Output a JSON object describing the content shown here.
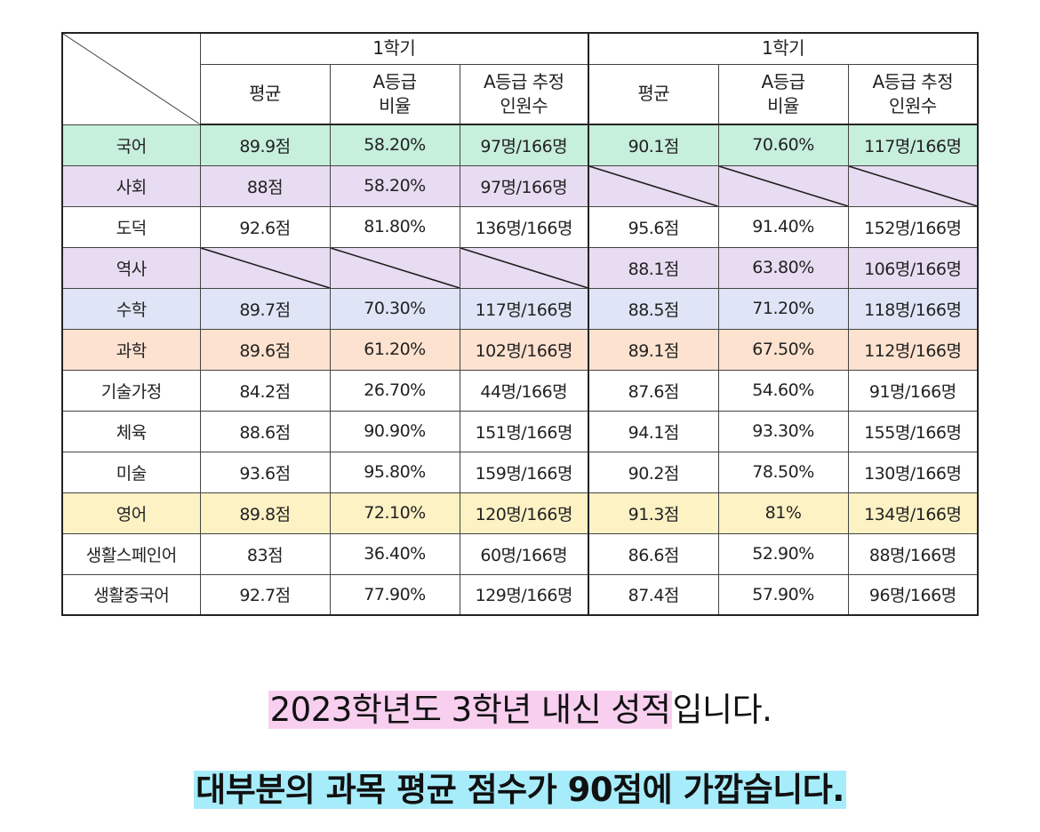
{
  "table": {
    "semesters": [
      "1학기",
      "1학기"
    ],
    "columns": [
      {
        "line1": "평균",
        "line2": ""
      },
      {
        "line1": "A등급",
        "line2": "비율"
      },
      {
        "line1": "A등급 추정",
        "line2": "인원수"
      },
      {
        "line1": "평균",
        "line2": ""
      },
      {
        "line1": "A등급",
        "line2": "비율"
      },
      {
        "line1": "A등급 추정",
        "line2": "인원수"
      }
    ],
    "rows": [
      {
        "subject": "국어",
        "color": "#c6efdc",
        "cells": [
          "89.9점",
          "58.20%",
          "97명/166명",
          "90.1점",
          "70.60%",
          "117명/166명"
        ]
      },
      {
        "subject": "사회",
        "color": "#e8dcf2",
        "cells": [
          "88점",
          "58.20%",
          "97명/166명",
          null,
          null,
          null
        ]
      },
      {
        "subject": "도덕",
        "color": "#ffffff",
        "cells": [
          "92.6점",
          "81.80%",
          "136명/166명",
          "95.6점",
          "91.40%",
          "152명/166명"
        ]
      },
      {
        "subject": "역사",
        "color": "#e8dcf2",
        "cells": [
          null,
          null,
          null,
          "88.1점",
          "63.80%",
          "106명/166명"
        ]
      },
      {
        "subject": "수학",
        "color": "#dfe5f6",
        "cells": [
          "89.7점",
          "70.30%",
          "117명/166명",
          "88.5점",
          "71.20%",
          "118명/166명"
        ]
      },
      {
        "subject": "과학",
        "color": "#fde2cf",
        "cells": [
          "89.6점",
          "61.20%",
          "102명/166명",
          "89.1점",
          "67.50%",
          "112명/166명"
        ]
      },
      {
        "subject": "기술가정",
        "color": "#ffffff",
        "cells": [
          "84.2점",
          "26.70%",
          "44명/166명",
          "87.6점",
          "54.60%",
          "91명/166명"
        ]
      },
      {
        "subject": "체육",
        "color": "#ffffff",
        "cells": [
          "88.6점",
          "90.90%",
          "151명/166명",
          "94.1점",
          "93.30%",
          "155명/166명"
        ]
      },
      {
        "subject": "미술",
        "color": "#ffffff",
        "cells": [
          "93.6점",
          "95.80%",
          "159명/166명",
          "90.2점",
          "78.50%",
          "130명/166명"
        ]
      },
      {
        "subject": "영어",
        "color": "#fdf2c4",
        "cells": [
          "89.8점",
          "72.10%",
          "120명/166명",
          "91.3점",
          "81%",
          "134명/166명"
        ]
      },
      {
        "subject": "생활스페인어",
        "color": "#ffffff",
        "cells": [
          "83점",
          "36.40%",
          "60명/166명",
          "86.6점",
          "52.90%",
          "88명/166명"
        ]
      },
      {
        "subject": "생활중국어",
        "color": "#ffffff",
        "cells": [
          "92.7점",
          "77.90%",
          "129명/166명",
          "87.4점",
          "57.90%",
          "96명/166명"
        ]
      }
    ]
  },
  "captions": {
    "line1_highlight": "2023학년도 3학년 내신 성적",
    "line1_rest": "입니다.",
    "line2_highlight": "대부분의 과목 평균 점수가 90점에 가깝습니다."
  },
  "colors": {
    "highlight_pink": "#f9cff0",
    "highlight_cyan": "#a7ecfa"
  }
}
